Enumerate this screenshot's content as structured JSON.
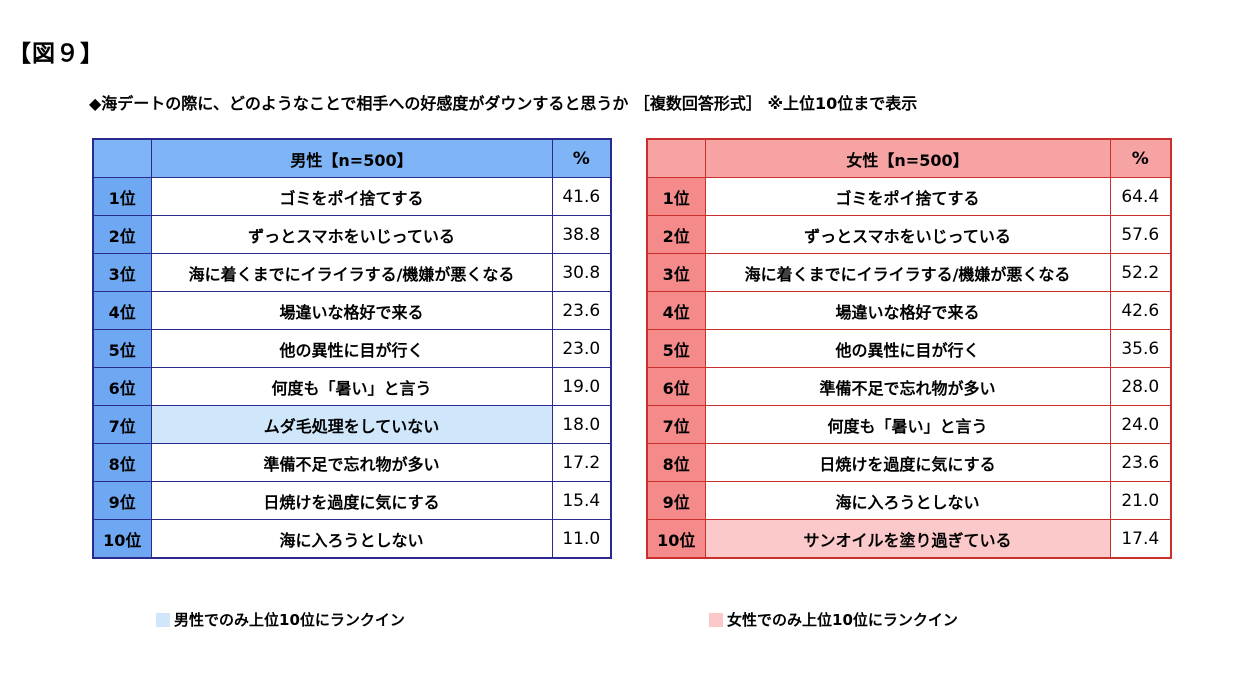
{
  "figure_label": "【図９】",
  "subtitle": "◆海デートの際に、どのようなことで相手への好感度がダウンすると思うか ［複数回答形式］ ※上位10位まで表示",
  "male": {
    "header": {
      "rank": "",
      "item": "男性【n=500】",
      "pct": "%"
    },
    "rows": [
      {
        "rank": "1位",
        "item": "ゴミをポイ捨てする",
        "pct": "41.6"
      },
      {
        "rank": "2位",
        "item": "ずっとスマホをいじっている",
        "pct": "38.8"
      },
      {
        "rank": "3位",
        "item": "海に着くまでにイライラする/機嫌が悪くなる",
        "pct": "30.8"
      },
      {
        "rank": "4位",
        "item": "場違いな格好で来る",
        "pct": "23.6"
      },
      {
        "rank": "5位",
        "item": "他の異性に目が行く",
        "pct": "23.0"
      },
      {
        "rank": "6位",
        "item": "何度も「暑い」と言う",
        "pct": "19.0"
      },
      {
        "rank": "7位",
        "item": "ムダ毛処理をしていない",
        "pct": "18.0"
      },
      {
        "rank": "8位",
        "item": "準備不足で忘れ物が多い",
        "pct": "17.2"
      },
      {
        "rank": "9位",
        "item": "日焼けを過度に気にする",
        "pct": "15.4"
      },
      {
        "rank": "10位",
        "item": "海に入ろうとしない",
        "pct": "11.0"
      }
    ],
    "highlight_color": "#cfe6fb",
    "legend": "男性でのみ上位10位にランクイン"
  },
  "female": {
    "header": {
      "rank": "",
      "item": "女性【n=500】",
      "pct": "%"
    },
    "rows": [
      {
        "rank": "1位",
        "item": "ゴミをポイ捨てする",
        "pct": "64.4"
      },
      {
        "rank": "2位",
        "item": "ずっとスマホをいじっている",
        "pct": "57.6"
      },
      {
        "rank": "3位",
        "item": "海に着くまでにイライラする/機嫌が悪くなる",
        "pct": "52.2"
      },
      {
        "rank": "4位",
        "item": "場違いな格好で来る",
        "pct": "42.6"
      },
      {
        "rank": "5位",
        "item": "他の異性に目が行く",
        "pct": "35.6"
      },
      {
        "rank": "6位",
        "item": "準備不足で忘れ物が多い",
        "pct": "28.0"
      },
      {
        "rank": "7位",
        "item": "何度も「暑い」と言う",
        "pct": "24.0"
      },
      {
        "rank": "8位",
        "item": "日焼けを過度に気にする",
        "pct": "23.6"
      },
      {
        "rank": "9位",
        "item": "海に入ろうとしない",
        "pct": "21.0"
      },
      {
        "rank": "10位",
        "item": "サンオイルを塗り過ぎている",
        "pct": "17.4"
      }
    ],
    "highlight_color": "#fbc9c9",
    "legend": "女性でのみ上位10位にランクイン"
  }
}
